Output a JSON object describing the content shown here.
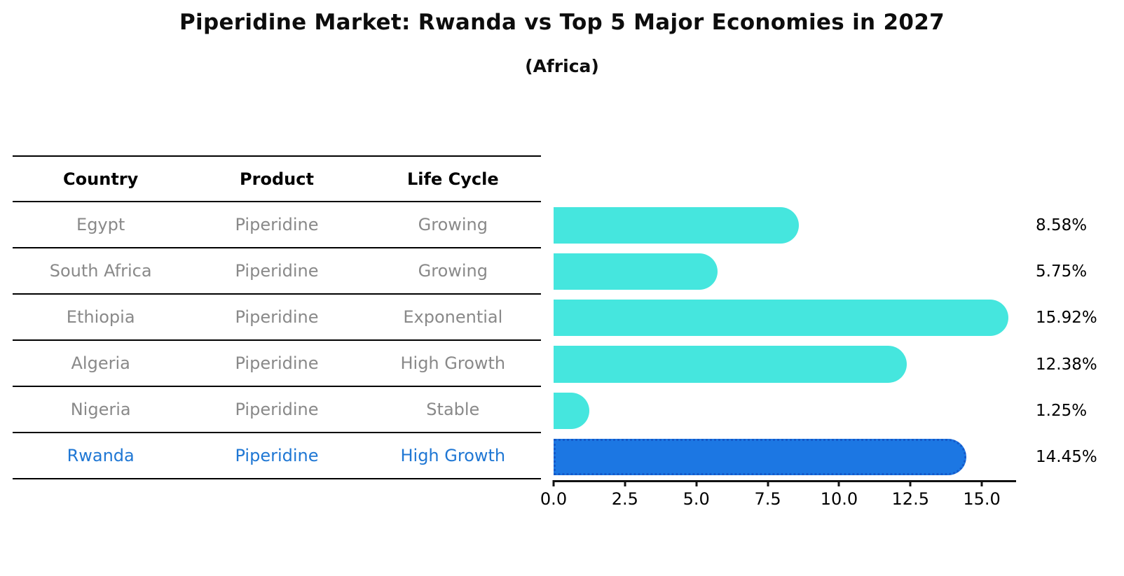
{
  "title": "Piperidine Market: Rwanda vs Top 5 Major Economies in 2027",
  "subtitle": "(Africa)",
  "table": {
    "headers": [
      "Country",
      "Product",
      "Life Cycle"
    ],
    "rows": [
      {
        "country": "Egypt",
        "product": "Piperidine",
        "life_cycle": "Growing",
        "highlight": false
      },
      {
        "country": "South Africa",
        "product": "Piperidine",
        "life_cycle": "Growing",
        "highlight": false
      },
      {
        "country": "Ethiopia",
        "product": "Piperidine",
        "life_cycle": "Exponential",
        "highlight": false
      },
      {
        "country": "Algeria",
        "product": "Piperidine",
        "life_cycle": "High Growth",
        "highlight": false
      },
      {
        "country": "Nigeria",
        "product": "Piperidine",
        "life_cycle": "Stable",
        "highlight": false
      },
      {
        "country": "Rwanda",
        "product": "Piperidine",
        "life_cycle": "High Growth",
        "highlight": true
      }
    ]
  },
  "chart_data": {
    "type": "bar",
    "orientation": "horizontal",
    "title": "Piperidine Market: Rwanda vs Top 5 Major Economies in 2027 (Africa)",
    "categories": [
      "Egypt",
      "South Africa",
      "Ethiopia",
      "Algeria",
      "Nigeria",
      "Rwanda"
    ],
    "values": [
      8.58,
      5.75,
      15.92,
      12.38,
      1.25,
      14.45
    ],
    "value_labels": [
      "8.58%",
      "5.75%",
      "15.92%",
      "12.38%",
      "1.25%",
      "14.45%"
    ],
    "x_ticks": [
      0.0,
      2.5,
      5.0,
      7.5,
      10.0,
      12.5,
      15.0
    ],
    "x_tick_labels": [
      "0.0",
      "2.5",
      "5.0",
      "7.5",
      "10.0",
      "12.5",
      "15.0"
    ],
    "xlim": [
      0,
      16.2
    ],
    "grid": false,
    "legend": "none",
    "colors": {
      "bar": "#45e6de",
      "highlight_bar": "#1c77e3",
      "highlight_border": "#1459c9",
      "highlight_text": "#1f77d4",
      "row_text": "#898989",
      "axis": "#111111"
    }
  }
}
